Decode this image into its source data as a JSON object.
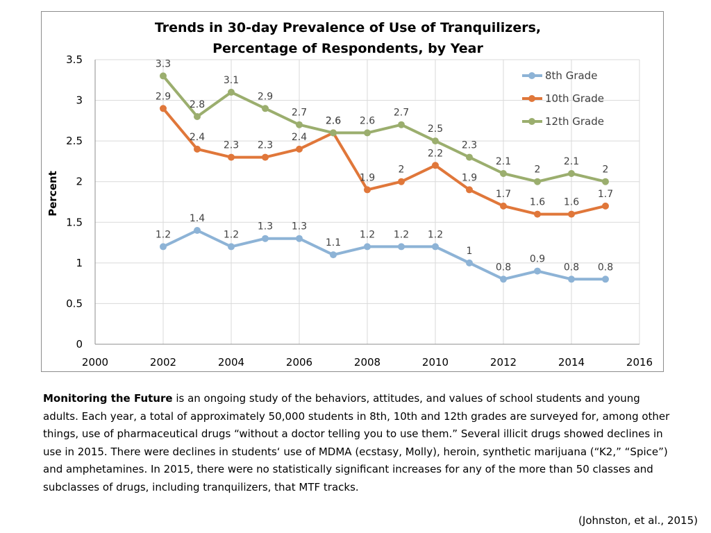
{
  "colors": {
    "series_8th": "#8DB3D6",
    "series_10th": "#E0773A",
    "series_12th": "#9BAE6E",
    "grid": "#d9d9d9",
    "axis": "#8c8c8c"
  },
  "chart_data": {
    "type": "line",
    "title_line1": "Trends in 30-day Prevalence of Use of Tranquilizers,",
    "title_line2": "Percentage of Respondents, by Year",
    "xlabel": "",
    "ylabel": "Percent",
    "xlim": [
      2000,
      2016
    ],
    "ylim": [
      0,
      3.5
    ],
    "xticks": [
      2000,
      2002,
      2004,
      2006,
      2008,
      2010,
      2012,
      2014,
      2016
    ],
    "yticks": [
      0,
      0.5,
      1,
      1.5,
      2,
      2.5,
      3,
      3.5
    ],
    "x": [
      2002,
      2003,
      2004,
      2005,
      2006,
      2007,
      2008,
      2009,
      2010,
      2011,
      2012,
      2013,
      2014,
      2015
    ],
    "grid": true,
    "legend_position": "top-right",
    "series": [
      {
        "name": "8th Grade",
        "color_key": "series_8th",
        "values": [
          1.2,
          1.4,
          1.2,
          1.3,
          1.3,
          1.1,
          1.2,
          1.2,
          1.2,
          1,
          0.8,
          0.9,
          0.8,
          0.8
        ]
      },
      {
        "name": "10th Grade",
        "color_key": "series_10th",
        "values": [
          2.9,
          2.4,
          2.3,
          2.3,
          2.4,
          2.6,
          1.9,
          2,
          2.2,
          1.9,
          1.7,
          1.6,
          1.6,
          1.7
        ]
      },
      {
        "name": "12th Grade",
        "color_key": "series_12th",
        "values": [
          3.3,
          2.8,
          3.1,
          2.9,
          2.7,
          2.6,
          2.6,
          2.7,
          2.5,
          2.3,
          2.1,
          2,
          2.1,
          2
        ]
      }
    ]
  },
  "caption": {
    "lead": "Monitoring the Future",
    "body": " is an ongoing study of the behaviors, attitudes, and values of school students and young adults. Each year, a total of approximately 50,000 students in 8th, 10th and 12th grades are surveyed for, among other things, use of pharmaceutical drugs “without a doctor telling you to use them.” Several illicit drugs showed declines in use in 2015. There were declines in students‘ use of MDMA (ecstasy, Molly), heroin, synthetic marijuana (“K2,” “Spice”) and amphetamines. In 2015, there were no statistically significant increases for any of the more than 50 classes and subclasses of drugs, including tranquilizers, that MTF tracks."
  },
  "citation": "(Johnston, et al., 2015)"
}
